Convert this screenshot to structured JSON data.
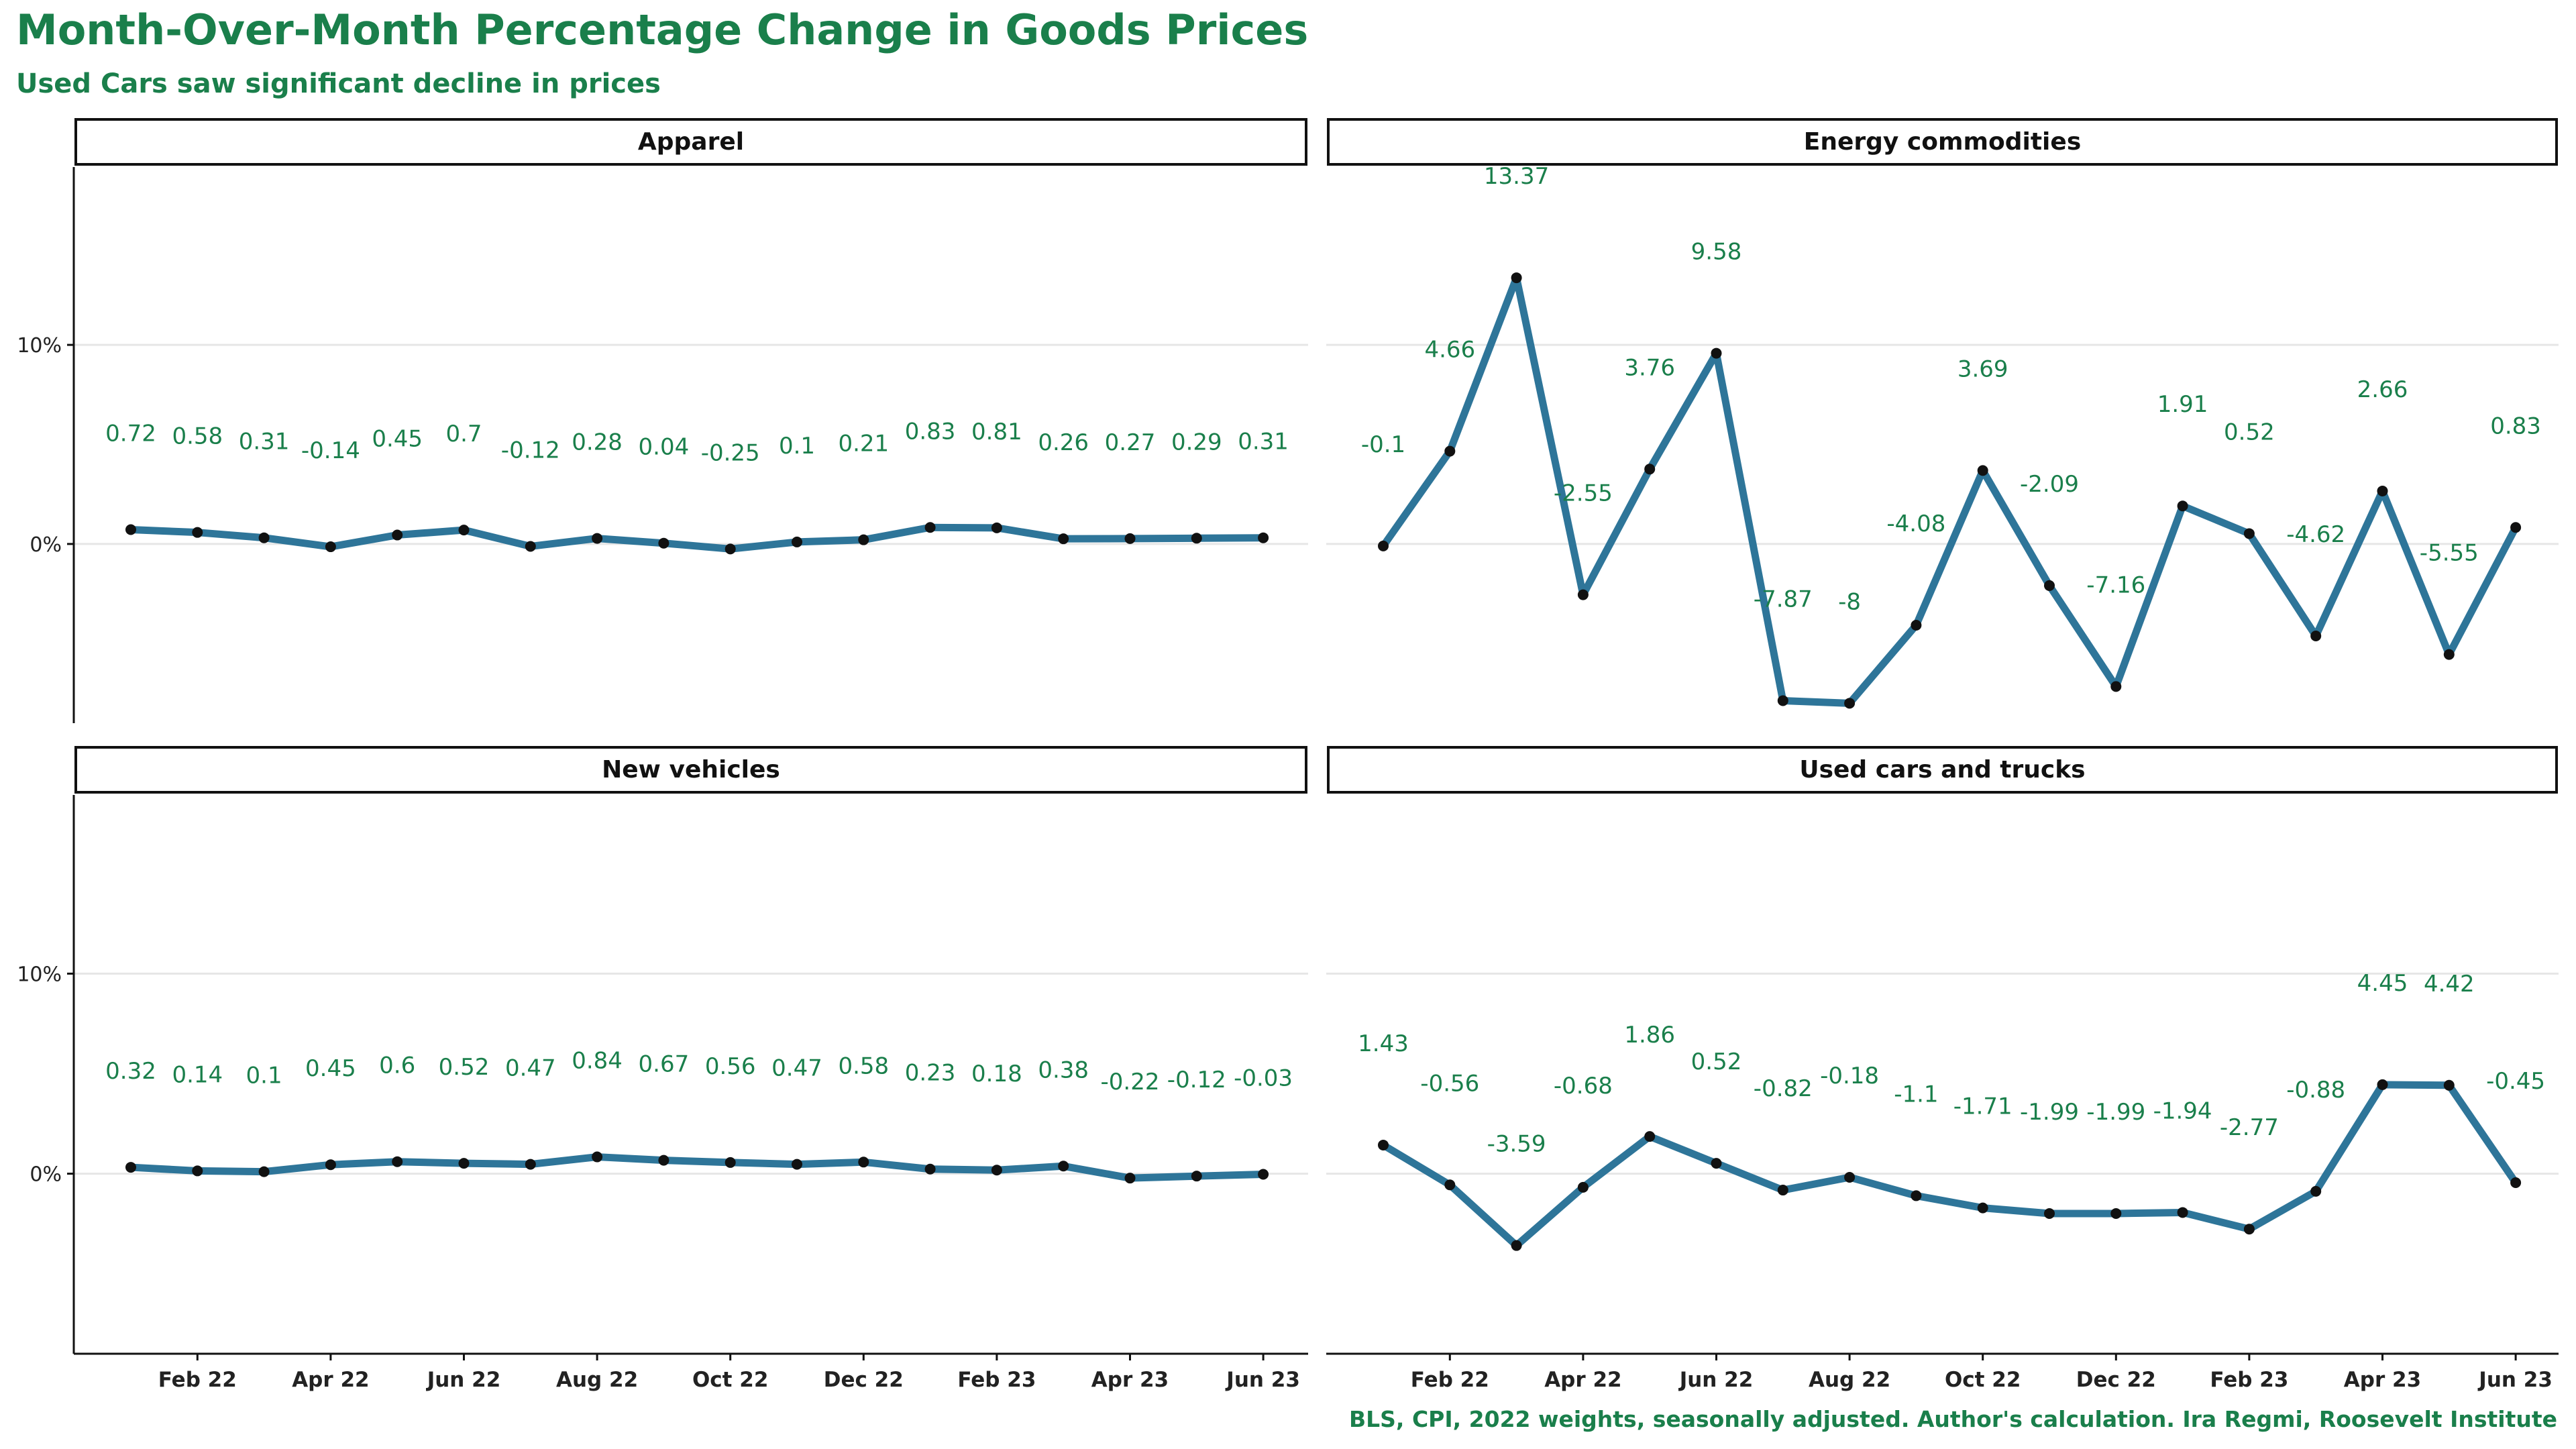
{
  "title": "Month-Over-Month Percentage Change in  Goods Prices",
  "subtitle": "Used Cars saw significant decline in prices",
  "caption": "BLS, CPI, 2022 weights, seasonally adjusted. Author's calculation. Ira Regmi, Roosevelt Institute",
  "colors": {
    "title": "#1a7f4b",
    "line": "#2e7599",
    "label": "#1a7f4b",
    "grid": "#e6e6e6"
  },
  "chart_data": {
    "type": "line",
    "facets": 4,
    "x": [
      "Jan 22",
      "Feb 22",
      "Mar 22",
      "Apr 22",
      "May 22",
      "Jun 22",
      "Jul 22",
      "Aug 22",
      "Sep 22",
      "Oct 22",
      "Nov 22",
      "Dec 22",
      "Jan 23",
      "Feb 23",
      "Mar 23",
      "Apr 23",
      "May 23",
      "Jun 23"
    ],
    "x_tick_labels": [
      "Feb 22",
      "Apr 22",
      "Jun 22",
      "Aug 22",
      "Oct 22",
      "Dec 22",
      "Feb 23",
      "Apr 23",
      "Jun 23"
    ],
    "y_tick_labels": [
      "0%",
      "10%"
    ],
    "ylim": [
      -9,
      19
    ],
    "grid": true,
    "series": [
      {
        "name": "Apparel",
        "values": [
          0.72,
          0.58,
          0.31,
          -0.14,
          0.45,
          0.7,
          -0.12,
          0.28,
          0.04,
          -0.25,
          0.1,
          0.21,
          0.83,
          0.81,
          0.26,
          0.27,
          0.29,
          0.31
        ]
      },
      {
        "name": "Energy commodities",
        "values": [
          -0.1,
          4.66,
          13.37,
          -2.55,
          3.76,
          9.58,
          -7.87,
          -8,
          -4.08,
          3.69,
          -2.09,
          -7.16,
          1.91,
          0.52,
          -4.62,
          2.66,
          -5.55,
          0.83
        ]
      },
      {
        "name": "New vehicles",
        "values": [
          0.32,
          0.14,
          0.1,
          0.45,
          0.6,
          0.52,
          0.47,
          0.84,
          0.67,
          0.56,
          0.47,
          0.58,
          0.23,
          0.18,
          0.38,
          -0.22,
          -0.12,
          -0.03
        ]
      },
      {
        "name": "Used cars and trucks",
        "values": [
          1.43,
          -0.56,
          -3.59,
          -0.68,
          1.86,
          0.52,
          -0.82,
          -0.18,
          -1.1,
          -1.71,
          -1.99,
          -1.99,
          -1.94,
          -2.77,
          -0.88,
          4.45,
          4.42,
          -0.45
        ]
      }
    ]
  }
}
